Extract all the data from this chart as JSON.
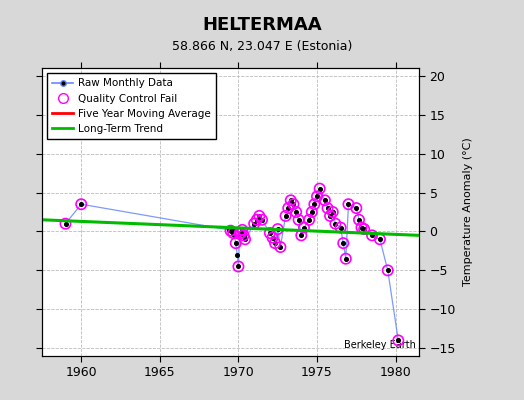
{
  "title": "HELTERMAA",
  "subtitle": "58.866 N, 23.047 E (Estonia)",
  "ylabel_right": "Temperature Anomaly (°C)",
  "watermark": "Berkeley Earth",
  "xlim": [
    1957.5,
    1981.5
  ],
  "ylim": [
    -16,
    21
  ],
  "yticks": [
    -15,
    -10,
    -5,
    0,
    5,
    10,
    15,
    20
  ],
  "xticks": [
    1960,
    1965,
    1970,
    1975,
    1980
  ],
  "background_color": "#d8d8d8",
  "plot_bg_color": "#ffffff",
  "grid_color": "#bbbbbb",
  "raw_line_color": "#6688ff",
  "raw_dot_color": "#000000",
  "qc_edge_color": "#ff00ff",
  "trend_color": "#00bb00",
  "raw_data_x": [
    1959.0,
    1960.0,
    1969.42,
    1969.5,
    1969.58,
    1969.67,
    1969.75,
    1969.83,
    1969.92,
    1970.0,
    1970.08,
    1970.17,
    1970.25,
    1970.33,
    1970.42,
    1971.0,
    1971.17,
    1971.33,
    1971.5,
    1972.0,
    1972.17,
    1972.33,
    1972.5,
    1972.67,
    1973.0,
    1973.17,
    1973.33,
    1973.5,
    1973.67,
    1973.83,
    1974.0,
    1974.17,
    1974.5,
    1974.67,
    1974.83,
    1975.0,
    1975.17,
    1975.5,
    1975.67,
    1975.83,
    1976.0,
    1976.17,
    1976.5,
    1976.67,
    1976.83,
    1977.0,
    1977.5,
    1977.67,
    1977.83,
    1978.0,
    1978.5,
    1979.0,
    1979.5,
    1980.17
  ],
  "raw_data_y": [
    1.0,
    3.5,
    0.2,
    0.1,
    0.3,
    -0.2,
    -0.5,
    -1.5,
    -3.0,
    -4.5,
    -0.3,
    -0.2,
    0.2,
    -0.5,
    -1.0,
    1.0,
    1.5,
    2.0,
    1.5,
    -0.2,
    -0.8,
    -1.5,
    0.3,
    -2.0,
    2.0,
    3.0,
    4.0,
    3.5,
    2.5,
    1.5,
    -0.5,
    0.5,
    1.5,
    2.5,
    3.5,
    4.5,
    5.5,
    4.0,
    3.0,
    2.0,
    2.5,
    1.0,
    0.5,
    -1.5,
    -3.5,
    3.5,
    3.0,
    1.5,
    0.5,
    0.3,
    -0.5,
    -1.0,
    -5.0,
    -14.0
  ],
  "qc_fail_x": [
    1959.0,
    1960.0,
    1969.5,
    1969.67,
    1969.83,
    1970.0,
    1970.08,
    1970.17,
    1970.25,
    1970.33,
    1970.42,
    1971.0,
    1971.17,
    1971.33,
    1971.5,
    1972.0,
    1972.17,
    1972.33,
    1972.5,
    1972.67,
    1973.0,
    1973.17,
    1973.33,
    1973.5,
    1973.67,
    1973.83,
    1974.0,
    1974.17,
    1974.5,
    1974.67,
    1974.83,
    1975.0,
    1975.17,
    1975.5,
    1975.67,
    1975.83,
    1976.0,
    1976.17,
    1976.5,
    1976.67,
    1976.83,
    1977.0,
    1977.5,
    1977.67,
    1977.83,
    1978.0,
    1978.5,
    1979.0,
    1979.5,
    1980.17
  ],
  "qc_fail_y": [
    1.0,
    3.5,
    0.1,
    -0.2,
    -1.5,
    -4.5,
    -0.3,
    -0.2,
    0.2,
    -0.5,
    -1.0,
    1.0,
    1.5,
    2.0,
    1.5,
    -0.2,
    -0.8,
    -1.5,
    0.3,
    -2.0,
    2.0,
    3.0,
    4.0,
    3.5,
    2.5,
    1.5,
    -0.5,
    0.5,
    1.5,
    2.5,
    3.5,
    4.5,
    5.5,
    4.0,
    3.0,
    2.0,
    2.5,
    1.0,
    0.5,
    -1.5,
    -3.5,
    3.5,
    3.0,
    1.5,
    0.5,
    0.3,
    -0.5,
    -1.0,
    -5.0,
    -14.0
  ],
  "trend_x": [
    1957.5,
    1981.5
  ],
  "trend_y": [
    1.5,
    -0.5
  ],
  "legend_labels": [
    "Raw Monthly Data",
    "Quality Control Fail",
    "Five Year Moving Average",
    "Long-Term Trend"
  ]
}
